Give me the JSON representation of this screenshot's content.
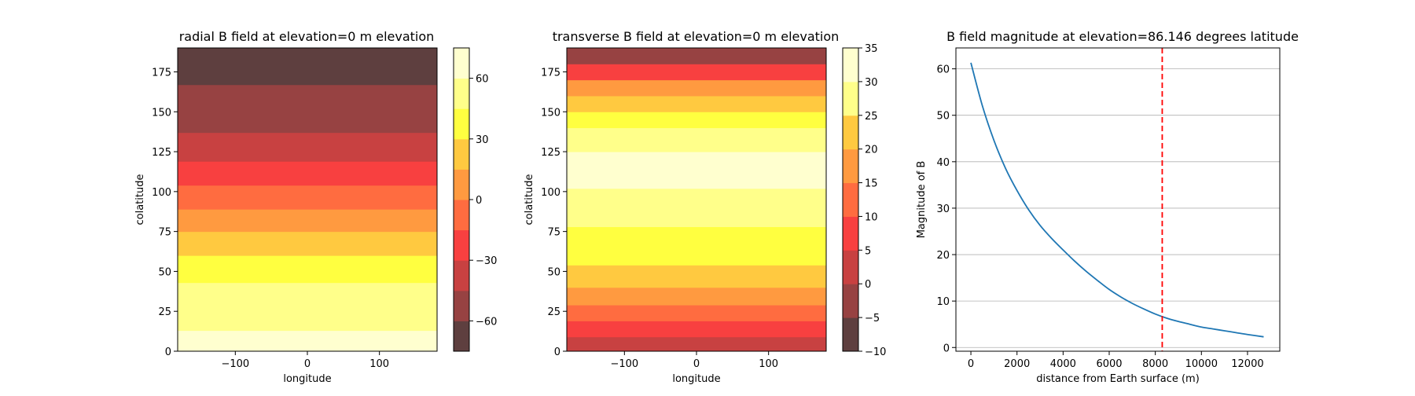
{
  "chart_data": [
    {
      "type": "heatmap",
      "title": "radial B field at elevation=0 m elevation",
      "xlabel": "longitude",
      "ylabel": "colatitude",
      "xlim": [
        -180,
        180
      ],
      "ylim": [
        0,
        190
      ],
      "xticks": [
        -100,
        0,
        100
      ],
      "xtick_labels": [
        "−100",
        "0",
        "100"
      ],
      "yticks": [
        0,
        25,
        50,
        75,
        100,
        125,
        150,
        175
      ],
      "ytick_labels": [
        "0",
        "25",
        "50",
        "75",
        "100",
        "125",
        "150",
        "175"
      ],
      "bands": [
        {
          "y0": 0,
          "y1": 13,
          "color": "#ffffcf"
        },
        {
          "y0": 13,
          "y1": 43,
          "color": "#ffff8a"
        },
        {
          "y0": 43,
          "y1": 60,
          "color": "#ffff40"
        },
        {
          "y0": 60,
          "y1": 75,
          "color": "#ffc940"
        },
        {
          "y0": 75,
          "y1": 89,
          "color": "#ff9a40"
        },
        {
          "y0": 89,
          "y1": 104,
          "color": "#ff6c40"
        },
        {
          "y0": 104,
          "y1": 119,
          "color": "#f84040"
        },
        {
          "y0": 119,
          "y1": 137,
          "color": "#c84141"
        },
        {
          "y0": 137,
          "y1": 167,
          "color": "#974242"
        },
        {
          "y0": 167,
          "y1": 190,
          "color": "#5e3f3f"
        }
      ],
      "colorbar": {
        "vmin": -75,
        "vmax": 75,
        "levels": [
          -75,
          -60,
          -45,
          -30,
          -15,
          0,
          15,
          30,
          45,
          60,
          75
        ],
        "colors": [
          "#5e3f3f",
          "#974242",
          "#c84141",
          "#f84040",
          "#ff6c40",
          "#ff9a40",
          "#ffc940",
          "#ffff40",
          "#ffff8a",
          "#ffffcf"
        ],
        "ticks": [
          -60,
          -30,
          0,
          30,
          60
        ],
        "tick_labels": [
          "−60",
          "−30",
          "0",
          "30",
          "60"
        ]
      }
    },
    {
      "type": "heatmap",
      "title": "transverse B field at elevation=0 m elevation",
      "xlabel": "longitude",
      "ylabel": "colatitude",
      "xlim": [
        -180,
        180
      ],
      "ylim": [
        0,
        190
      ],
      "xticks": [
        -100,
        0,
        100
      ],
      "xtick_labels": [
        "−100",
        "0",
        "100"
      ],
      "yticks": [
        0,
        25,
        50,
        75,
        100,
        125,
        150,
        175
      ],
      "ytick_labels": [
        "0",
        "25",
        "50",
        "75",
        "100",
        "125",
        "150",
        "175"
      ],
      "bands": [
        {
          "y0": 0,
          "y1": 9,
          "color": "#c84141"
        },
        {
          "y0": 9,
          "y1": 19,
          "color": "#f84040"
        },
        {
          "y0": 19,
          "y1": 29,
          "color": "#ff6c40"
        },
        {
          "y0": 29,
          "y1": 40,
          "color": "#ff9a40"
        },
        {
          "y0": 40,
          "y1": 54,
          "color": "#ffc940"
        },
        {
          "y0": 54,
          "y1": 78,
          "color": "#ffff40"
        },
        {
          "y0": 78,
          "y1": 102,
          "color": "#ffff8a"
        },
        {
          "y0": 102,
          "y1": 125,
          "color": "#ffffcf"
        },
        {
          "y0": 125,
          "y1": 140,
          "color": "#ffff8a"
        },
        {
          "y0": 140,
          "y1": 150,
          "color": "#ffff40"
        },
        {
          "y0": 150,
          "y1": 160,
          "color": "#ffc940"
        },
        {
          "y0": 160,
          "y1": 170,
          "color": "#ff9a40"
        },
        {
          "y0": 170,
          "y1": 180,
          "color": "#f84040"
        },
        {
          "y0": 180,
          "y1": 190,
          "color": "#974242"
        }
      ],
      "colorbar": {
        "vmin": -10,
        "vmax": 35,
        "levels": [
          -10,
          -5,
          0,
          5,
          10,
          15,
          20,
          25,
          30,
          35
        ],
        "colors": [
          "#5e3f3f",
          "#974242",
          "#c84141",
          "#f84040",
          "#ff6c40",
          "#ff9a40",
          "#ffc940",
          "#ffff8a",
          "#ffffcf"
        ],
        "ticks": [
          -10,
          -5,
          0,
          5,
          10,
          15,
          20,
          25,
          30,
          35
        ],
        "tick_labels": [
          "−10",
          "−5",
          "0",
          "5",
          "10",
          "15",
          "20",
          "25",
          "30",
          "35"
        ]
      }
    },
    {
      "type": "line",
      "title": "B field magnitude at elevation=86.146 degrees latitude",
      "xlabel": "distance from Earth surface (m)",
      "ylabel": "Magnitude of B",
      "xlim": [
        -650,
        13400
      ],
      "ylim": [
        -0.8,
        64.5
      ],
      "xticks": [
        0,
        2000,
        4000,
        6000,
        8000,
        10000,
        12000
      ],
      "xtick_labels": [
        "0",
        "2000",
        "4000",
        "6000",
        "8000",
        "10000",
        "12000"
      ],
      "yticks": [
        0,
        10,
        20,
        30,
        40,
        50,
        60
      ],
      "ytick_labels": [
        "0",
        "10",
        "20",
        "30",
        "40",
        "50",
        "60"
      ],
      "grid": "y",
      "series": [
        {
          "color": "#1f77b4",
          "x": [
            0,
            500,
            1000,
            1500,
            2000,
            2500,
            3000,
            3500,
            4000,
            4500,
            5000,
            5500,
            6000,
            6500,
            7000,
            7500,
            8000,
            8500,
            9000,
            9500,
            10000,
            10500,
            11000,
            11500,
            12000,
            12700
          ],
          "y": [
            61.3,
            52.0,
            44.6,
            38.6,
            33.8,
            29.7,
            26.3,
            23.5,
            21.0,
            18.6,
            16.4,
            14.4,
            12.5,
            10.9,
            9.5,
            8.3,
            7.2,
            6.3,
            5.6,
            5.0,
            4.4,
            4.0,
            3.6,
            3.2,
            2.8,
            2.3
          ]
        }
      ],
      "vline": {
        "x": 8300,
        "color": "#ff0000",
        "style": "dashed"
      }
    }
  ]
}
